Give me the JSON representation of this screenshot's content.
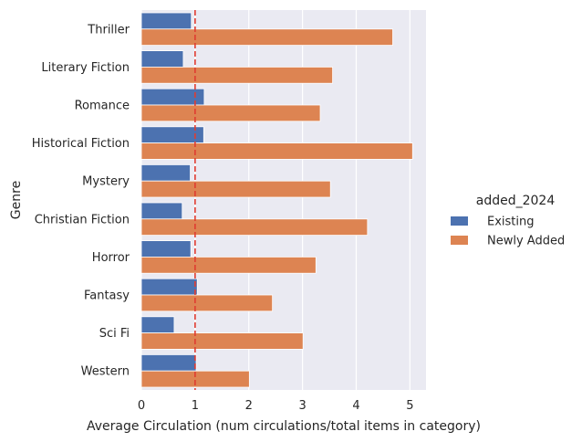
{
  "chart_data": {
    "type": "bar",
    "orientation": "horizontal",
    "categories": [
      "Thriller",
      "Literary Fiction",
      "Romance",
      "Historical Fiction",
      "Mystery",
      "Christian Fiction",
      "Horror",
      "Fantasy",
      "Sci Fi",
      "Western"
    ],
    "series": [
      {
        "name": "Existing",
        "color": "#4c72b0",
        "values": [
          0.93,
          0.78,
          1.17,
          1.16,
          0.91,
          0.76,
          0.92,
          1.04,
          0.61,
          1.02
        ]
      },
      {
        "name": "Newly Added",
        "color": "#dd8452",
        "values": [
          4.68,
          3.56,
          3.33,
          5.05,
          3.52,
          4.21,
          3.25,
          2.44,
          3.01,
          2.01
        ]
      }
    ],
    "xlabel": "Average Circulation (num circulations/total items in category)",
    "ylabel": "Genre",
    "xlim": [
      0,
      5.3
    ],
    "xticks": [
      "0",
      "1",
      "2",
      "3",
      "4",
      "5"
    ],
    "reference_line": {
      "x": 1,
      "color": "#e03c31",
      "style": "dashed"
    },
    "legend": {
      "title": "added_2024",
      "placement": "right"
    },
    "grid": true,
    "background": "#eaeaf2"
  }
}
